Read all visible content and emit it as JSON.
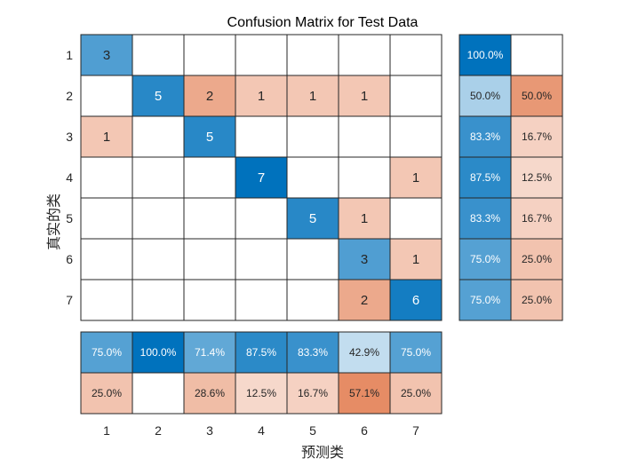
{
  "chart_data": {
    "type": "heatmap",
    "title": "Confusion Matrix for Test Data",
    "xlabel": "预测类",
    "ylabel": "真实的类",
    "classes": [
      "1",
      "2",
      "3",
      "4",
      "5",
      "6",
      "7"
    ],
    "matrix": [
      [
        3,
        null,
        null,
        null,
        null,
        null,
        null
      ],
      [
        null,
        5,
        2,
        1,
        1,
        1,
        null
      ],
      [
        1,
        null,
        5,
        null,
        null,
        null,
        null
      ],
      [
        null,
        null,
        null,
        7,
        null,
        null,
        1
      ],
      [
        null,
        null,
        null,
        null,
        5,
        1,
        null
      ],
      [
        null,
        null,
        null,
        null,
        null,
        3,
        1
      ],
      [
        null,
        null,
        null,
        null,
        null,
        2,
        6
      ]
    ],
    "row_summary": {
      "correct": [
        "100.0%",
        "50.0%",
        "83.3%",
        "87.5%",
        "83.3%",
        "75.0%",
        "75.0%"
      ],
      "incorrect": [
        "",
        "50.0%",
        "16.7%",
        "12.5%",
        "16.7%",
        "25.0%",
        "25.0%"
      ]
    },
    "column_summary": {
      "correct": [
        "75.0%",
        "100.0%",
        "71.4%",
        "87.5%",
        "83.3%",
        "42.9%",
        "75.0%"
      ],
      "incorrect": [
        "25.0%",
        "",
        "28.6%",
        "12.5%",
        "16.7%",
        "57.1%",
        "25.0%"
      ]
    },
    "colors": {
      "correct_max": "#0072bd",
      "incorrect_max": "#d95319",
      "grid": "#262626",
      "text_dark": "#262626",
      "text_light": "#ffffff"
    }
  }
}
